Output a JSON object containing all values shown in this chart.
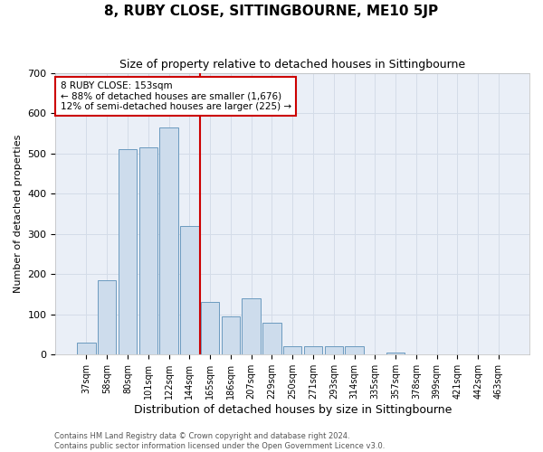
{
  "title": "8, RUBY CLOSE, SITTINGBOURNE, ME10 5JP",
  "subtitle": "Size of property relative to detached houses in Sittingbourne",
  "xlabel": "Distribution of detached houses by size in Sittingbourne",
  "ylabel": "Number of detached properties",
  "footer_line1": "Contains HM Land Registry data © Crown copyright and database right 2024.",
  "footer_line2": "Contains public sector information licensed under the Open Government Licence v3.0.",
  "annotation_line1": "8 RUBY CLOSE: 153sqm",
  "annotation_line2": "← 88% of detached houses are smaller (1,676)",
  "annotation_line3": "12% of semi-detached houses are larger (225) →",
  "bar_labels": [
    "37sqm",
    "58sqm",
    "80sqm",
    "101sqm",
    "122sqm",
    "144sqm",
    "165sqm",
    "186sqm",
    "207sqm",
    "229sqm",
    "250sqm",
    "271sqm",
    "293sqm",
    "314sqm",
    "335sqm",
    "357sqm",
    "378sqm",
    "399sqm",
    "421sqm",
    "442sqm",
    "463sqm"
  ],
  "bar_values": [
    30,
    185,
    510,
    515,
    565,
    320,
    130,
    95,
    140,
    80,
    20,
    20,
    20,
    20,
    0,
    5,
    0,
    0,
    0,
    0,
    0
  ],
  "bar_color": "#cddcec",
  "bar_edge_color": "#6b9abf",
  "grid_color": "#d4dce8",
  "bg_color": "#eaeff7",
  "vline_pos": 5.5,
  "vline_color": "#cc0000",
  "ylim": [
    0,
    700
  ],
  "yticks": [
    0,
    100,
    200,
    300,
    400,
    500,
    600,
    700
  ],
  "title_fontsize": 11,
  "subtitle_fontsize": 9,
  "xlabel_fontsize": 9,
  "ylabel_fontsize": 8,
  "tick_fontsize": 8,
  "xtick_fontsize": 7,
  "annotation_fontsize": 7.5,
  "footer_fontsize": 6
}
